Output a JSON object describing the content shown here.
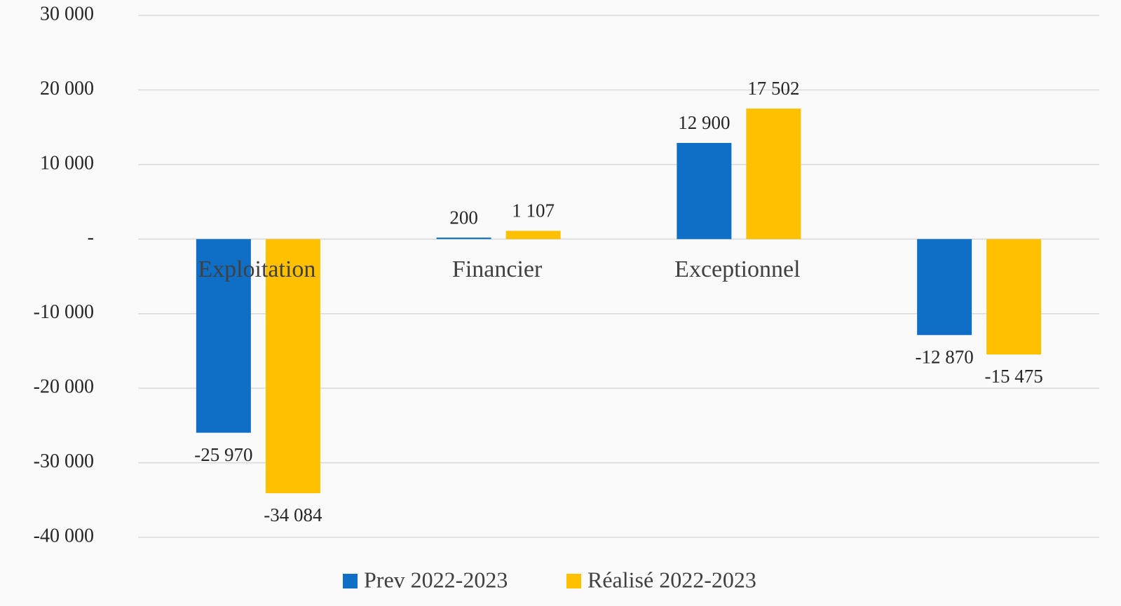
{
  "chart_data": {
    "type": "bar",
    "categories": [
      "Exploitation",
      "Financier",
      "Exceptionnel",
      null
    ],
    "series": [
      {
        "name": "Prev 2022-2023",
        "color": "#0f6fc6",
        "values": [
          -25970,
          200,
          12900,
          -12870
        ],
        "value_labels": [
          "-25 970",
          "200",
          "12 900",
          "-12 870"
        ]
      },
      {
        "name": "Réalisé 2022-2023",
        "color": "#ffc000",
        "values": [
          -34084,
          1107,
          17502,
          -15475
        ],
        "value_labels": [
          "-34 084",
          "1 107",
          "17 502",
          "-15 475"
        ]
      }
    ],
    "ylim": [
      -40000,
      30000
    ],
    "yticks": [
      {
        "value": 30000,
        "label": "30 000"
      },
      {
        "value": 20000,
        "label": "20 000"
      },
      {
        "value": 10000,
        "label": "10 000"
      },
      {
        "value": 0,
        "label": "-"
      },
      {
        "value": -10000,
        "label": "-10 000"
      },
      {
        "value": -20000,
        "label": "-20 000"
      },
      {
        "value": -30000,
        "label": "-30 000"
      },
      {
        "value": -40000,
        "label": "-40 000"
      }
    ],
    "grid": true,
    "legend": "bottom"
  }
}
